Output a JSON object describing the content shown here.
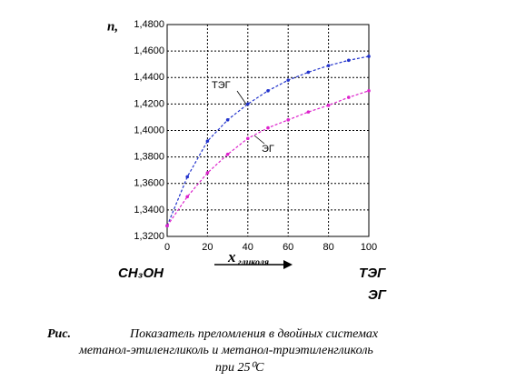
{
  "chart_data": {
    "type": "line",
    "ylabel": "n,",
    "xlabel": "x",
    "xlabel_sub": "гликоля",
    "x": [
      0,
      10,
      20,
      30,
      40,
      50,
      60,
      70,
      80,
      90,
      100
    ],
    "series": [
      {
        "name": "ТЭГ",
        "color": "#2233cc",
        "values": [
          1.328,
          1.365,
          1.392,
          1.408,
          1.42,
          1.43,
          1.438,
          1.444,
          1.449,
          1.453,
          1.456
        ]
      },
      {
        "name": "ЭГ",
        "color": "#dd22cc",
        "values": [
          1.328,
          1.35,
          1.368,
          1.382,
          1.394,
          1.402,
          1.408,
          1.414,
          1.419,
          1.425,
          1.43
        ]
      }
    ],
    "xlim": [
      0,
      100
    ],
    "xticks": [
      0,
      20,
      40,
      60,
      80,
      100
    ],
    "ylim": [
      1.32,
      1.48
    ],
    "yticks": [
      {
        "value": 1.32,
        "label": "1,3200"
      },
      {
        "value": 1.34,
        "label": "1,3400"
      },
      {
        "value": 1.36,
        "label": "1,3600"
      },
      {
        "value": 1.38,
        "label": "1,3800"
      },
      {
        "value": 1.4,
        "label": "1,4000"
      },
      {
        "value": 1.42,
        "label": "1,4200"
      },
      {
        "value": 1.44,
        "label": "1,4400"
      },
      {
        "value": 1.46,
        "label": "1,4600"
      },
      {
        "value": 1.48,
        "label": "1,4800"
      }
    ],
    "grid": true
  },
  "components": {
    "left": "CH₃OH",
    "right_top": "ТЭГ",
    "right_bottom": "ЭГ"
  },
  "caption": {
    "label": "Рис.",
    "line1": "Показатель преломления в двойных системах",
    "line2": "метанол-этиленгликоль и метанол-триэтиленгликоль",
    "line3": "при  25⁰С"
  }
}
